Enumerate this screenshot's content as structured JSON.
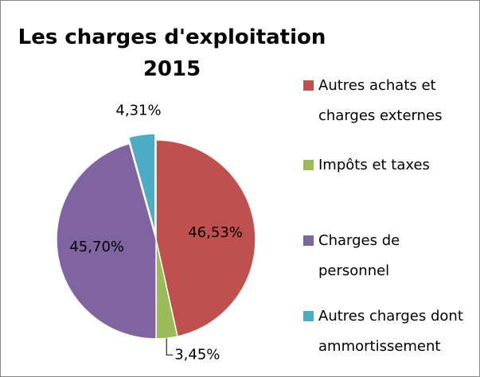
{
  "chart_data": {
    "type": "pie",
    "title": "Les charges d'exploitation 2015",
    "categories": [
      "Autres achats et charges externes",
      "Impôts et taxes",
      "Charges de personnel",
      "Autres charges dont ammortissement"
    ],
    "values": [
      46.53,
      3.45,
      45.7,
      4.31
    ],
    "value_labels": [
      "46,53%",
      "3,45%",
      "45,70%",
      "4,31%"
    ],
    "colors": [
      "#c0504d",
      "#9bbb59",
      "#8064a2",
      "#4bacc6"
    ],
    "legend": "right"
  }
}
